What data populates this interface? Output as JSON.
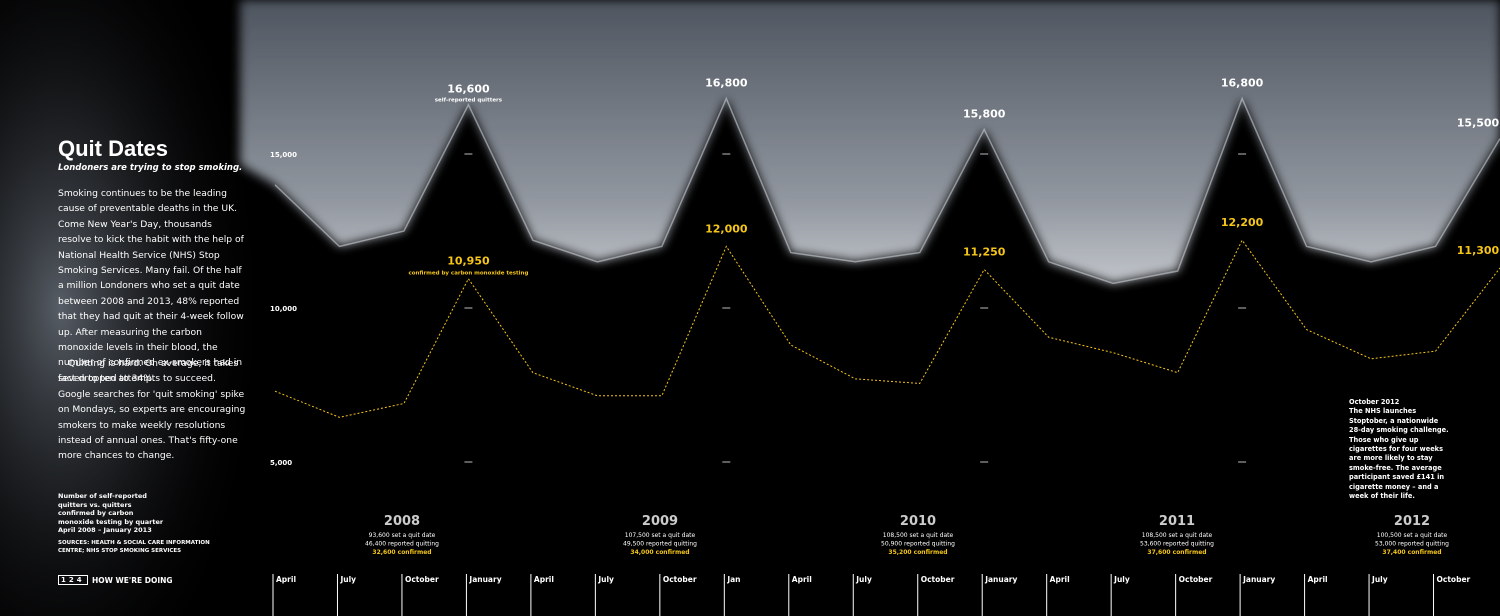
{
  "article": {
    "title": "Quit Dates",
    "subtitle": "Londoners are trying to stop smoking.",
    "paragraphs": [
      "Smoking continues to be the leading cause of preventable deaths in the UK. Come New Year's Day, thousands resolve to kick the habit with the help of National Health Service (NHS) Stop Smoking Services. Many fail. Of the half a million Londoners who set a quit date between 2008 and 2013, 48% reported that they had quit at their 4-week follow up. After measuring the carbon monoxide levels in their blood, the number of confirmed ex-smokers had in fact dropped to 34%.",
      "Quitting is hard. On average, it takes seven to ten attempts to succeed. Google searches for 'quit smoking' spike on Mondays, so experts are encouraging smokers to make weekly resolutions instead of annual ones. That's fifty-one more chances to change."
    ],
    "caption": "Number of self-reported quitters vs. quitters confirmed by carbon monoxide testing by quarter April 2008 – January 2013",
    "sources": "SOURCES: HEALTH & SOCIAL CARE INFORMATION CENTRE; NHS STOP SMOKING SERVICES",
    "page_number": "124",
    "section": "HOW WE'RE DOING"
  },
  "chart_data": {
    "type": "line",
    "categories": [
      "April",
      "July",
      "October",
      "January",
      "April",
      "July",
      "October",
      "Jan",
      "April",
      "July",
      "October",
      "January",
      "April",
      "July",
      "October",
      "January",
      "April",
      "July",
      "October",
      null
    ],
    "series": [
      {
        "name": "self-reported quitters",
        "color": "#c9ced6",
        "values": [
          14000,
          12000,
          12500,
          16600,
          12200,
          11500,
          12000,
          16800,
          11800,
          11500,
          11800,
          15800,
          11500,
          10800,
          11200,
          16800,
          12000,
          11500,
          12000,
          15500
        ],
        "value_labels": [
          null,
          null,
          null,
          "16,600",
          null,
          null,
          null,
          "16,800",
          null,
          null,
          null,
          "15,800",
          null,
          null,
          null,
          "16,800",
          null,
          null,
          null,
          "15,500"
        ]
      },
      {
        "name": "confirmed by carbon monoxide testing",
        "color": "#f5c518",
        "values": [
          7300,
          6450,
          6900,
          10950,
          7900,
          7150,
          7150,
          12000,
          8800,
          7700,
          7550,
          11250,
          9050,
          8550,
          7900,
          12200,
          9300,
          8350,
          8600,
          11300
        ],
        "value_labels": [
          null,
          null,
          null,
          "10,950",
          null,
          null,
          null,
          "12,000",
          null,
          null,
          null,
          "11,250",
          null,
          null,
          null,
          "12,200",
          null,
          null,
          null,
          "11,300"
        ]
      }
    ],
    "ylim": [
      5000,
      15000
    ],
    "yticks": [
      {
        "value": 5000,
        "label": "5,000"
      },
      {
        "value": 10000,
        "label": "10,000"
      },
      {
        "value": 15000,
        "label": "15,000"
      }
    ],
    "years": [
      {
        "year": "2008",
        "lines": [
          "93,600 set a quit date",
          "46,400 reported quitting",
          "32,600 confirmed"
        ]
      },
      {
        "year": "2009",
        "lines": [
          "107,500 set a quit date",
          "49,500 reported quitting",
          "34,000 confirmed"
        ]
      },
      {
        "year": "2010",
        "lines": [
          "108,500 set a quit date",
          "50,900 reported quitting",
          "35,200 confirmed"
        ]
      },
      {
        "year": "2011",
        "lines": [
          "108,500 set a quit date",
          "53,600 reported quitting",
          "37,600 confirmed"
        ]
      },
      {
        "year": "2012",
        "lines": [
          "100,500 set a quit date",
          "53,000 reported quitting",
          "37,400 confirmed"
        ]
      }
    ],
    "note": {
      "title": "October 2012",
      "text": "The NHS launches Stoptober, a nationwide 28-day smoking challenge. Those who give up cigarettes for four weeks are more likely to stay smoke-free. The average participant saved £141 in cigarette money – and a week of their life."
    }
  }
}
